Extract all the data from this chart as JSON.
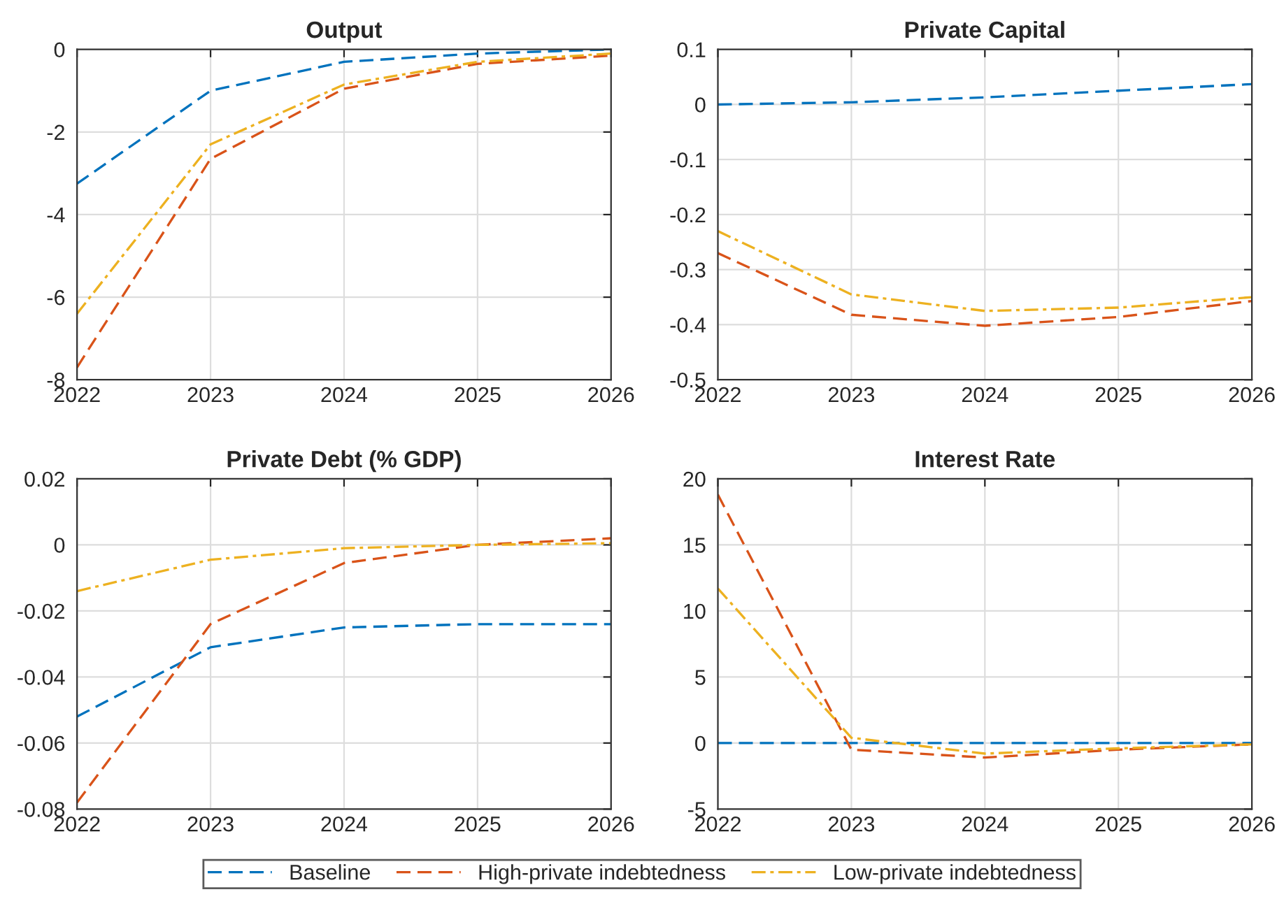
{
  "chart_data": [
    {
      "type": "line",
      "title": "Output",
      "x": [
        2022,
        2023,
        2024,
        2025,
        2026
      ],
      "xlim": [
        2022,
        2026
      ],
      "xticks": [
        2022,
        2023,
        2024,
        2025,
        2026
      ],
      "ylim": [
        -8,
        0
      ],
      "yticks": [
        -8,
        -6,
        -4,
        -2,
        0
      ],
      "grid": true,
      "legend": "bottom",
      "series": [
        {
          "name": "Baseline",
          "color": "#0072bd",
          "line_style": "dashed",
          "values": [
            -3.25,
            -1.0,
            -0.3,
            -0.1,
            0
          ]
        },
        {
          "name": "High-private indebtedness",
          "color": "#d95319",
          "line_style": "dashed",
          "values": [
            -7.7,
            -2.65,
            -0.95,
            -0.35,
            -0.15
          ]
        },
        {
          "name": "Low-private indebtedness",
          "color": "#edb120",
          "line_style": "dashdot",
          "values": [
            -6.4,
            -2.3,
            -0.85,
            -0.3,
            -0.1
          ]
        }
      ]
    },
    {
      "type": "line",
      "title": "Private Capital",
      "x": [
        2022,
        2023,
        2024,
        2025,
        2026
      ],
      "xlim": [
        2022,
        2026
      ],
      "xticks": [
        2022,
        2023,
        2024,
        2025,
        2026
      ],
      "ylim": [
        -0.5,
        0.1
      ],
      "yticks": [
        -0.5,
        -0.4,
        -0.3,
        -0.2,
        -0.1,
        0,
        0.1
      ],
      "grid": true,
      "series": [
        {
          "color": "#0072bd",
          "line_style": "dashed",
          "values": [
            0,
            0.004,
            0.013,
            0.025,
            0.037
          ]
        },
        {
          "color": "#d95319",
          "line_style": "dashed",
          "values": [
            -0.27,
            -0.382,
            -0.402,
            -0.386,
            -0.357
          ]
        },
        {
          "color": "#edb120",
          "line_style": "dashdot",
          "values": [
            -0.23,
            -0.345,
            -0.375,
            -0.369,
            -0.35
          ]
        }
      ]
    },
    {
      "type": "line",
      "title": "Private Debt (% GDP)",
      "x": [
        2022,
        2023,
        2024,
        2025,
        2026
      ],
      "xlim": [
        2022,
        2026
      ],
      "xticks": [
        2022,
        2023,
        2024,
        2025,
        2026
      ],
      "ylim": [
        -0.08,
        0.02
      ],
      "yticks": [
        -0.08,
        -0.06,
        -0.04,
        -0.02,
        0,
        0.02
      ],
      "grid": true,
      "series": [
        {
          "color": "#0072bd",
          "line_style": "dashed",
          "values": [
            -0.052,
            -0.031,
            -0.025,
            -0.024,
            -0.024
          ]
        },
        {
          "color": "#d95319",
          "line_style": "dashed",
          "values": [
            -0.078,
            -0.024,
            -0.0055,
            0,
            0.002
          ]
        },
        {
          "color": "#edb120",
          "line_style": "dashdot",
          "values": [
            -0.014,
            -0.0045,
            -0.001,
            0,
            0.0005
          ]
        }
      ]
    },
    {
      "type": "line",
      "title": "Interest Rate",
      "x": [
        2022,
        2023,
        2024,
        2025,
        2026
      ],
      "xlim": [
        2022,
        2026
      ],
      "xticks": [
        2022,
        2023,
        2024,
        2025,
        2026
      ],
      "ylim": [
        -5,
        20
      ],
      "yticks": [
        -5,
        0,
        5,
        10,
        15,
        20
      ],
      "grid": true,
      "series": [
        {
          "color": "#0072bd",
          "line_style": "dashed",
          "values": [
            0,
            0,
            0,
            0,
            0
          ]
        },
        {
          "color": "#d95319",
          "line_style": "dashed",
          "values": [
            18.8,
            -0.5,
            -1.1,
            -0.5,
            -0.1
          ]
        },
        {
          "color": "#edb120",
          "line_style": "dashdot",
          "values": [
            11.7,
            0.4,
            -0.8,
            -0.4,
            -0.1
          ]
        }
      ]
    }
  ]
}
